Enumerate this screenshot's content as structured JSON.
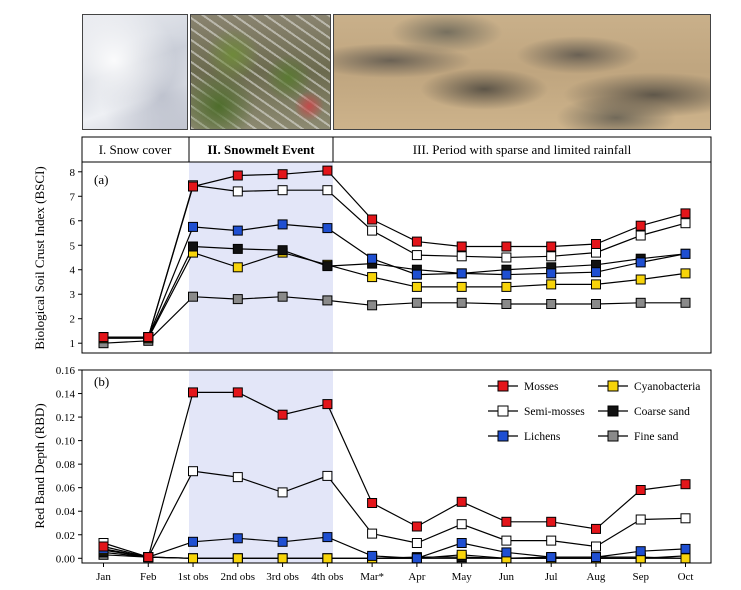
{
  "photos": {
    "snow": "snow-cover-photo",
    "snowmelt": "snowmelt-photo",
    "crust": "biological-soil-crust-photo"
  },
  "periods": [
    {
      "label": "I. Snow cover",
      "bold": false
    },
    {
      "label": "II. Snowmelt Event",
      "bold": true
    },
    {
      "label": "III. Period with sparse and limited rainfall",
      "bold": false
    }
  ],
  "colors": {
    "Mosses": "#e3151a",
    "Semi-mosses": "#ffffff",
    "Lichens": "#1f4fd1",
    "Cyanobacteria": "#f7d40a",
    "Coarse sand": "#111111",
    "Fine sand": "#8a8a8a",
    "highlight": "#e3e6f8"
  },
  "chart_data": [
    {
      "type": "line",
      "panel_label": "(a)",
      "ylabel": "Biological Soil Crust Index (BSCI)",
      "ylim": [
        0.6,
        8.4
      ],
      "yticks": [
        1,
        2,
        3,
        4,
        5,
        6,
        7,
        8
      ],
      "yticklabels": [
        "1",
        "2",
        "3",
        "4",
        "5",
        "6",
        "7",
        "8"
      ],
      "categories": [
        "Jan",
        "Feb",
        "1st obs",
        "2nd obs",
        "3rd obs",
        "4th obs",
        "Mar*",
        "Apr",
        "May",
        "Jun",
        "Jul",
        "Aug",
        "Sep",
        "Oct"
      ],
      "highlight_range": [
        "1st obs",
        "4th obs"
      ],
      "series": [
        {
          "name": "Fine sand",
          "values": [
            1.0,
            1.1,
            2.9,
            2.8,
            2.9,
            2.75,
            2.55,
            2.65,
            2.65,
            2.6,
            2.6,
            2.6,
            2.65,
            2.65
          ]
        },
        {
          "name": "Cyanobacteria",
          "values": [
            1.2,
            1.2,
            4.7,
            4.1,
            4.7,
            4.2,
            3.7,
            3.3,
            3.3,
            3.3,
            3.4,
            3.4,
            3.6,
            3.85
          ]
        },
        {
          "name": "Coarse sand",
          "values": [
            1.25,
            1.25,
            4.95,
            4.85,
            4.8,
            4.15,
            4.25,
            4.0,
            3.85,
            4.0,
            4.1,
            4.2,
            4.45,
            4.65
          ]
        },
        {
          "name": "Lichens",
          "values": [
            1.25,
            1.25,
            5.75,
            5.6,
            5.85,
            5.7,
            4.45,
            3.8,
            3.85,
            3.8,
            3.85,
            3.9,
            4.3,
            4.65
          ]
        },
        {
          "name": "Semi-mosses",
          "values": [
            1.25,
            1.25,
            7.45,
            7.2,
            7.25,
            7.25,
            5.6,
            4.6,
            4.55,
            4.5,
            4.55,
            4.7,
            5.4,
            5.9
          ]
        },
        {
          "name": "Mosses",
          "values": [
            1.25,
            1.25,
            7.4,
            7.85,
            7.9,
            8.05,
            6.05,
            5.15,
            4.95,
            4.95,
            4.95,
            5.05,
            5.8,
            6.3
          ]
        }
      ]
    },
    {
      "type": "line",
      "panel_label": "(b)",
      "ylabel": "Red Band Depth (RBD)",
      "ylim": [
        -0.004,
        0.16
      ],
      "yticks": [
        0,
        0.02,
        0.04,
        0.06,
        0.08,
        0.1,
        0.12,
        0.14,
        0.16
      ],
      "yticklabels": [
        "0.00",
        "0.02",
        "0.04",
        "0.06",
        "0.08",
        "0.10",
        "0.12",
        "0.14",
        "0.16"
      ],
      "categories": [
        "Jan",
        "Feb",
        "1st obs",
        "2nd obs",
        "3rd obs",
        "4th obs",
        "Mar*",
        "Apr",
        "May",
        "Jun",
        "Jul",
        "Aug",
        "Sep",
        "Oct"
      ],
      "highlight_range": [
        "1st obs",
        "4th obs"
      ],
      "legend_position": "top-right",
      "legend": [
        "Mosses",
        "Cyanobacteria",
        "Semi-mosses",
        "Coarse sand",
        "Lichens",
        "Fine sand"
      ],
      "series": [
        {
          "name": "Fine sand",
          "values": [
            0.003,
            0.001,
            0.0,
            0.0,
            0.0,
            0.0,
            0.0,
            0.0,
            0.0,
            0.0,
            0.0,
            0.0,
            0.0,
            0.002
          ]
        },
        {
          "name": "Coarse sand",
          "values": [
            0.005,
            0.001,
            0.0,
            0.0,
            0.0,
            0.0,
            0.0,
            0.001,
            0.001,
            0.0,
            0.001,
            0.001,
            0.001,
            0.0
          ]
        },
        {
          "name": "Cyanobacteria",
          "values": [
            0.007,
            0.001,
            0.0,
            0.0,
            0.0,
            0.0,
            0.0,
            0.0,
            0.003,
            0.0,
            0.0,
            0.0,
            0.0,
            0.0
          ]
        },
        {
          "name": "Lichens",
          "values": [
            0.008,
            0.001,
            0.014,
            0.017,
            0.014,
            0.018,
            0.002,
            0.0,
            0.013,
            0.005,
            0.001,
            0.001,
            0.006,
            0.008
          ]
        },
        {
          "name": "Semi-mosses",
          "values": [
            0.013,
            0.001,
            0.074,
            0.069,
            0.056,
            0.07,
            0.021,
            0.013,
            0.029,
            0.015,
            0.015,
            0.01,
            0.033,
            0.034
          ]
        },
        {
          "name": "Mosses",
          "values": [
            0.01,
            0.001,
            0.141,
            0.141,
            0.122,
            0.131,
            0.047,
            0.027,
            0.048,
            0.031,
            0.031,
            0.025,
            0.058,
            0.063
          ]
        }
      ]
    }
  ]
}
